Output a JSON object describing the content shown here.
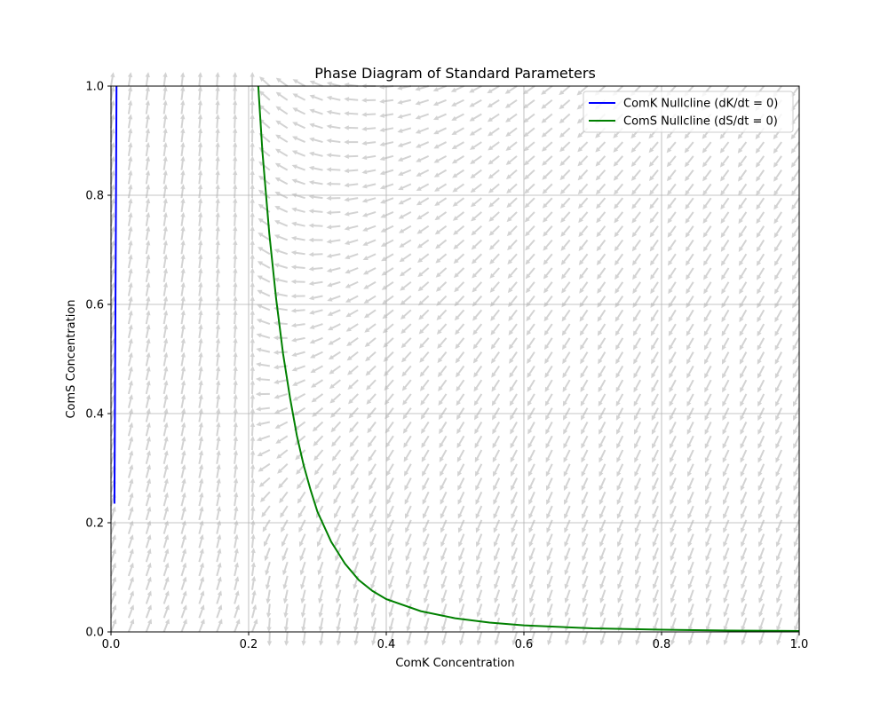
{
  "chart_data": {
    "type": "line",
    "title": "Phase Diagram of Standard Parameters",
    "xlabel": "ComK Concentration",
    "ylabel": "ComS Concentration",
    "xlim": [
      0,
      1
    ],
    "ylim": [
      0,
      1
    ],
    "xticks": [
      "0.0",
      "0.2",
      "0.4",
      "0.6",
      "0.8",
      "1.0"
    ],
    "yticks": [
      "0.0",
      "0.2",
      "0.4",
      "0.6",
      "0.8",
      "1.0"
    ],
    "grid": true,
    "legend_position": "top-right",
    "series": [
      {
        "name": "ComK Nullcline (dK/dt = 0)",
        "color": "#0000ff",
        "x": [
          0.005,
          0.0055,
          0.006,
          0.0065,
          0.007,
          0.0075,
          0.008
        ],
        "y": [
          0.235,
          0.35,
          0.48,
          0.6,
          0.72,
          0.86,
          1.0
        ]
      },
      {
        "name": "ComS Nullcline (dS/dt = 0)",
        "color": "#008000",
        "x": [
          0.214,
          0.22,
          0.23,
          0.24,
          0.25,
          0.26,
          0.27,
          0.28,
          0.29,
          0.3,
          0.32,
          0.34,
          0.36,
          0.38,
          0.4,
          0.45,
          0.5,
          0.55,
          0.6,
          0.7,
          0.8,
          0.9,
          1.0
        ],
        "y": [
          1.0,
          0.88,
          0.73,
          0.61,
          0.51,
          0.43,
          0.36,
          0.305,
          0.26,
          0.22,
          0.165,
          0.125,
          0.095,
          0.075,
          0.06,
          0.038,
          0.025,
          0.017,
          0.012,
          0.0065,
          0.004,
          0.0025,
          0.0017
        ]
      }
    ],
    "vector_field": {
      "color": "#d3d3d3",
      "description_free": true
    }
  }
}
